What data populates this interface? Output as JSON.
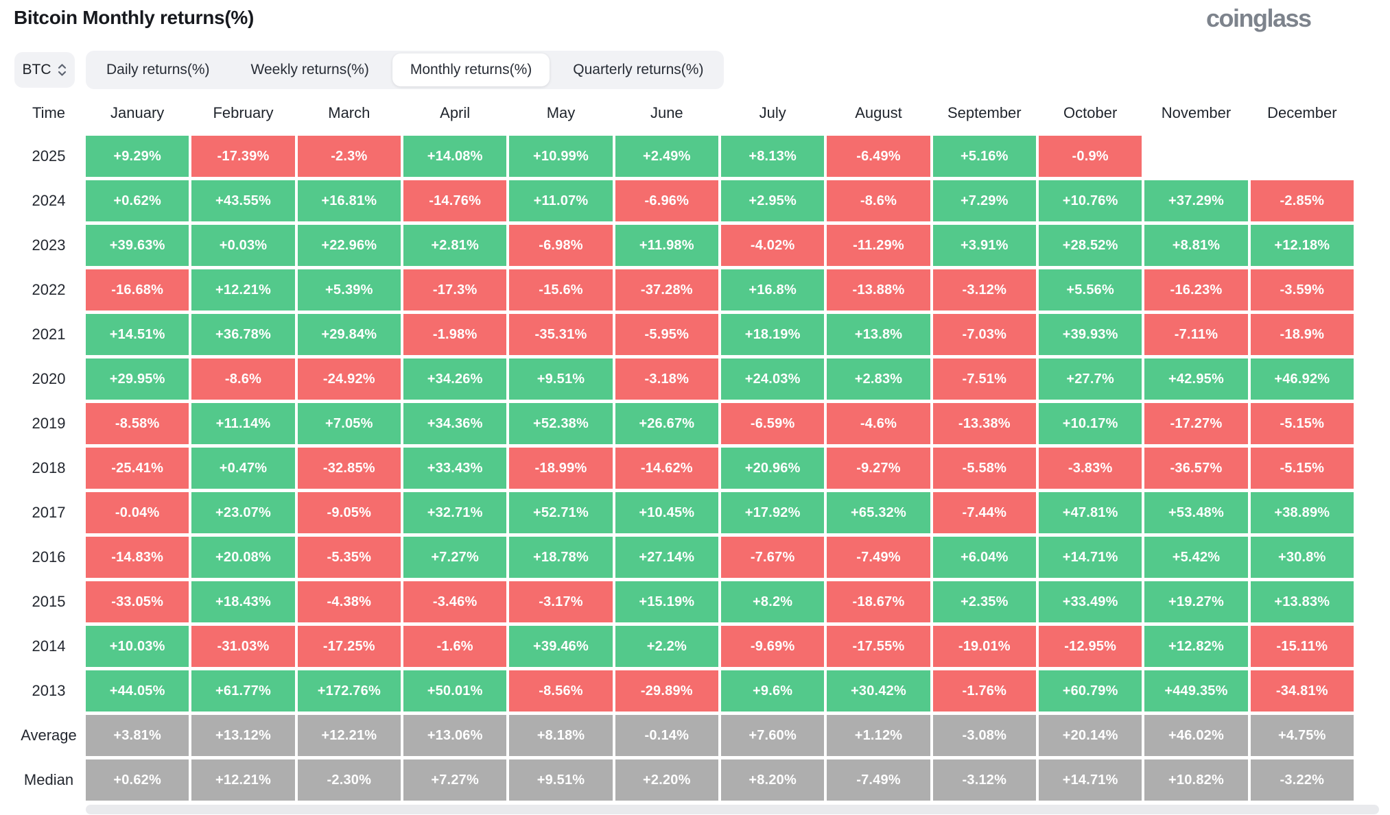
{
  "header": {
    "title": "Bitcoin Monthly returns(%)",
    "brand": "coinglass"
  },
  "controls": {
    "coin": "BTC",
    "tabs": [
      {
        "label": "Daily returns(%)",
        "active": false
      },
      {
        "label": "Weekly returns(%)",
        "active": false
      },
      {
        "label": "Monthly returns(%)",
        "active": true
      },
      {
        "label": "Quarterly returns(%)",
        "active": false
      }
    ]
  },
  "colors": {
    "positive": "#53c98b",
    "negative": "#f56d6d",
    "neutral": "#aeaeae"
  },
  "chart_data": {
    "type": "heatmap",
    "title": "Bitcoin Monthly returns(%)",
    "time_header": "Time",
    "months": [
      "January",
      "February",
      "March",
      "April",
      "May",
      "June",
      "July",
      "August",
      "September",
      "October",
      "November",
      "December"
    ],
    "rows": [
      {
        "label": "2025",
        "type": "year",
        "values": [
          "+9.29%",
          "-17.39%",
          "-2.3%",
          "+14.08%",
          "+10.99%",
          "+2.49%",
          "+8.13%",
          "-6.49%",
          "+5.16%",
          "-0.9%",
          "",
          ""
        ]
      },
      {
        "label": "2024",
        "type": "year",
        "values": [
          "+0.62%",
          "+43.55%",
          "+16.81%",
          "-14.76%",
          "+11.07%",
          "-6.96%",
          "+2.95%",
          "-8.6%",
          "+7.29%",
          "+10.76%",
          "+37.29%",
          "-2.85%"
        ]
      },
      {
        "label": "2023",
        "type": "year",
        "values": [
          "+39.63%",
          "+0.03%",
          "+22.96%",
          "+2.81%",
          "-6.98%",
          "+11.98%",
          "-4.02%",
          "-11.29%",
          "+3.91%",
          "+28.52%",
          "+8.81%",
          "+12.18%"
        ]
      },
      {
        "label": "2022",
        "type": "year",
        "values": [
          "-16.68%",
          "+12.21%",
          "+5.39%",
          "-17.3%",
          "-15.6%",
          "-37.28%",
          "+16.8%",
          "-13.88%",
          "-3.12%",
          "+5.56%",
          "-16.23%",
          "-3.59%"
        ]
      },
      {
        "label": "2021",
        "type": "year",
        "values": [
          "+14.51%",
          "+36.78%",
          "+29.84%",
          "-1.98%",
          "-35.31%",
          "-5.95%",
          "+18.19%",
          "+13.8%",
          "-7.03%",
          "+39.93%",
          "-7.11%",
          "-18.9%"
        ]
      },
      {
        "label": "2020",
        "type": "year",
        "values": [
          "+29.95%",
          "-8.6%",
          "-24.92%",
          "+34.26%",
          "+9.51%",
          "-3.18%",
          "+24.03%",
          "+2.83%",
          "-7.51%",
          "+27.7%",
          "+42.95%",
          "+46.92%"
        ]
      },
      {
        "label": "2019",
        "type": "year",
        "values": [
          "-8.58%",
          "+11.14%",
          "+7.05%",
          "+34.36%",
          "+52.38%",
          "+26.67%",
          "-6.59%",
          "-4.6%",
          "-13.38%",
          "+10.17%",
          "-17.27%",
          "-5.15%"
        ]
      },
      {
        "label": "2018",
        "type": "year",
        "values": [
          "-25.41%",
          "+0.47%",
          "-32.85%",
          "+33.43%",
          "-18.99%",
          "-14.62%",
          "+20.96%",
          "-9.27%",
          "-5.58%",
          "-3.83%",
          "-36.57%",
          "-5.15%"
        ]
      },
      {
        "label": "2017",
        "type": "year",
        "values": [
          "-0.04%",
          "+23.07%",
          "-9.05%",
          "+32.71%",
          "+52.71%",
          "+10.45%",
          "+17.92%",
          "+65.32%",
          "-7.44%",
          "+47.81%",
          "+53.48%",
          "+38.89%"
        ]
      },
      {
        "label": "2016",
        "type": "year",
        "values": [
          "-14.83%",
          "+20.08%",
          "-5.35%",
          "+7.27%",
          "+18.78%",
          "+27.14%",
          "-7.67%",
          "-7.49%",
          "+6.04%",
          "+14.71%",
          "+5.42%",
          "+30.8%"
        ]
      },
      {
        "label": "2015",
        "type": "year",
        "values": [
          "-33.05%",
          "+18.43%",
          "-4.38%",
          "-3.46%",
          "-3.17%",
          "+15.19%",
          "+8.2%",
          "-18.67%",
          "+2.35%",
          "+33.49%",
          "+19.27%",
          "+13.83%"
        ]
      },
      {
        "label": "2014",
        "type": "year",
        "values": [
          "+10.03%",
          "-31.03%",
          "-17.25%",
          "-1.6%",
          "+39.46%",
          "+2.2%",
          "-9.69%",
          "-17.55%",
          "-19.01%",
          "-12.95%",
          "+12.82%",
          "-15.11%"
        ]
      },
      {
        "label": "2013",
        "type": "year",
        "values": [
          "+44.05%",
          "+61.77%",
          "+172.76%",
          "+50.01%",
          "-8.56%",
          "-29.89%",
          "+9.6%",
          "+30.42%",
          "-1.76%",
          "+60.79%",
          "+449.35%",
          "-34.81%"
        ]
      },
      {
        "label": "Average",
        "type": "summary",
        "values": [
          "+3.81%",
          "+13.12%",
          "+12.21%",
          "+13.06%",
          "+8.18%",
          "-0.14%",
          "+7.60%",
          "+1.12%",
          "-3.08%",
          "+20.14%",
          "+46.02%",
          "+4.75%"
        ]
      },
      {
        "label": "Median",
        "type": "summary",
        "values": [
          "+0.62%",
          "+12.21%",
          "-2.30%",
          "+7.27%",
          "+9.51%",
          "+2.20%",
          "+8.20%",
          "-7.49%",
          "-3.12%",
          "+14.71%",
          "+10.82%",
          "-3.22%"
        ]
      }
    ]
  }
}
